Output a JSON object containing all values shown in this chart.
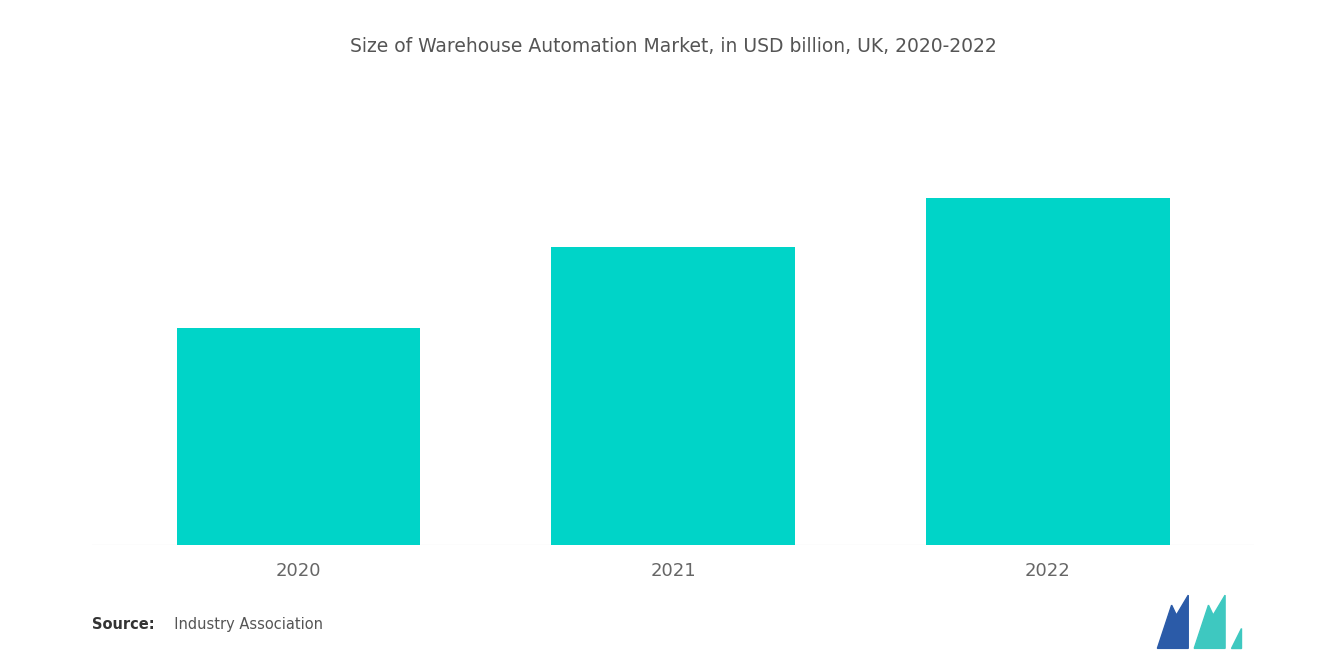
{
  "title": "Size of Warehouse Automation Market, in USD billion, UK, 2020-2022",
  "categories": [
    "2020",
    "2021",
    "2022"
  ],
  "values": [
    3.5,
    4.8,
    5.6
  ],
  "bar_color": "#00D4C8",
  "background_color": "#ffffff",
  "title_fontsize": 13.5,
  "tick_fontsize": 13,
  "source_bold": "Source:",
  "source_normal": "  Industry Association",
  "ylim": [
    0,
    7.5
  ],
  "bar_width": 0.65,
  "xlim": [
    -0.55,
    2.55
  ],
  "logo_blue": "#2B5BA8",
  "logo_teal": "#3EC8C0"
}
